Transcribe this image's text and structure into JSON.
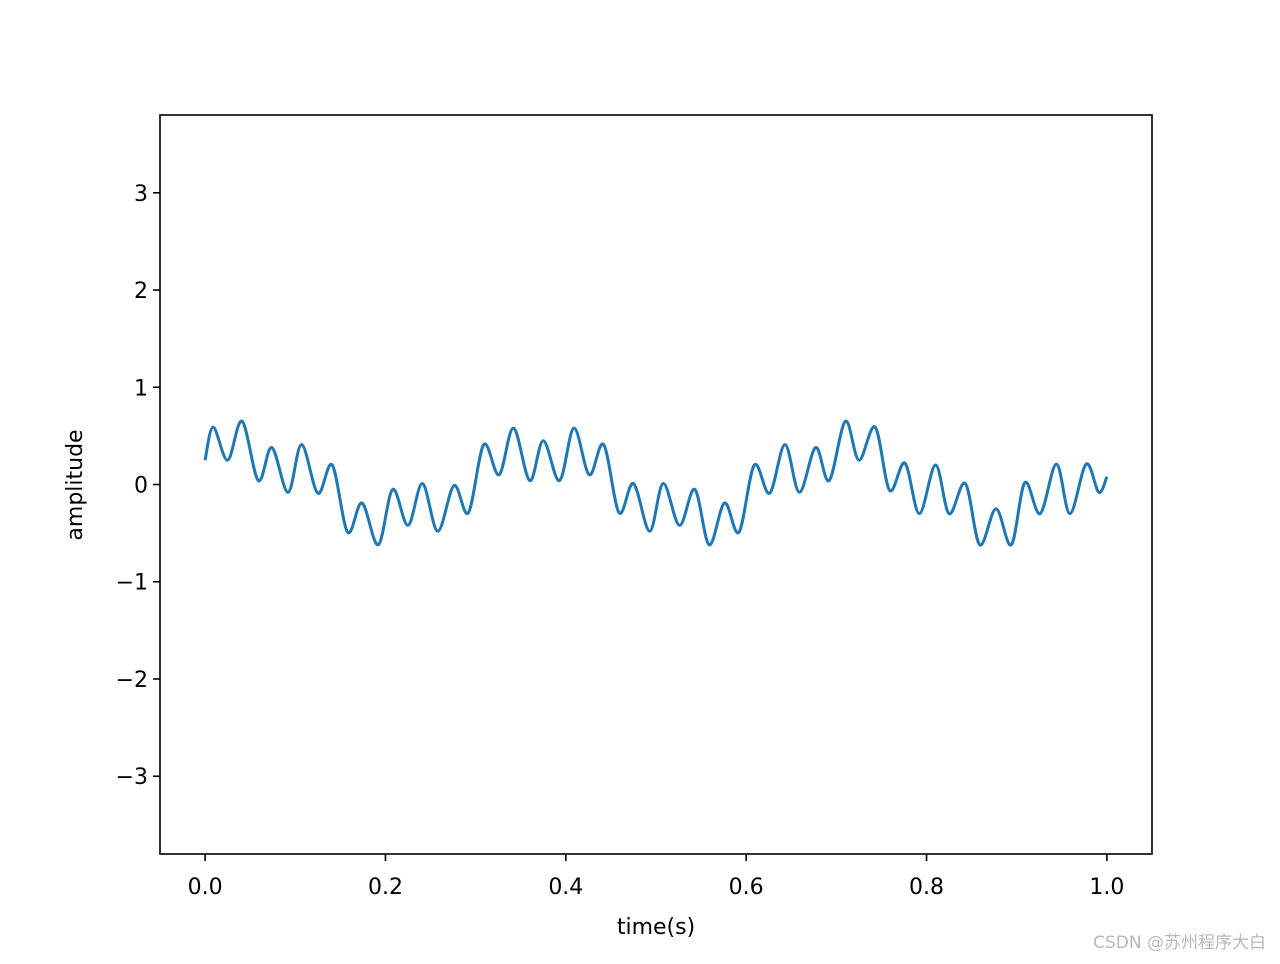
{
  "chart_data": {
    "type": "line",
    "xlabel": "time(s)",
    "ylabel": "amplitude",
    "x": [
      0,
      0.009,
      0.025,
      0.041,
      0.059,
      0.074,
      0.092,
      0.107,
      0.125,
      0.141,
      0.158,
      0.174,
      0.192,
      0.208,
      0.225,
      0.241,
      0.258,
      0.276,
      0.292,
      0.309,
      0.326,
      0.342,
      0.36,
      0.375,
      0.393,
      0.409,
      0.426,
      0.442,
      0.459,
      0.475,
      0.493,
      0.508,
      0.526,
      0.543,
      0.559,
      0.576,
      0.592,
      0.609,
      0.626,
      0.643,
      0.659,
      0.677,
      0.692,
      0.71,
      0.725,
      0.743,
      0.759,
      0.776,
      0.792,
      0.81,
      0.825,
      0.843,
      0.859,
      0.877,
      0.894,
      0.909,
      0.926,
      0.944,
      0.959,
      0.977,
      0.991,
      1.0
    ],
    "series": [
      {
        "color": "#1f77b4",
        "values": [
          0.25,
          0.59,
          0.25,
          0.65,
          0.04,
          0.38,
          -0.08,
          0.41,
          -0.09,
          0.2,
          -0.49,
          -0.19,
          -0.62,
          -0.05,
          -0.42,
          0.01,
          -0.48,
          -0.01,
          -0.29,
          0.41,
          0.1,
          0.58,
          0.04,
          0.45,
          0.04,
          0.58,
          0.1,
          0.41,
          -0.29,
          0.01,
          -0.48,
          0.01,
          -0.42,
          -0.05,
          -0.62,
          -0.19,
          -0.49,
          0.2,
          -0.09,
          0.41,
          -0.08,
          0.38,
          0.04,
          0.65,
          0.25,
          0.59,
          -0.06,
          0.22,
          -0.3,
          0.2,
          -0.3,
          0.01,
          -0.62,
          -0.25,
          -0.62,
          0.02,
          -0.3,
          0.21,
          -0.3,
          0.21,
          -0.08,
          0.08
        ]
      }
    ],
    "xlim": [
      -0.05,
      1.05
    ],
    "ylim": [
      -3.8,
      3.8
    ],
    "xticks": [
      {
        "value": 0,
        "label": "0.0"
      },
      0.2,
      0.4,
      0.6,
      0.8,
      {
        "value": 1,
        "label": "1.0"
      }
    ],
    "yticks": [
      {
        "value": -3,
        "label": "−3"
      },
      {
        "value": -2,
        "label": "−2"
      },
      {
        "value": -1,
        "label": "−1"
      },
      0,
      1,
      2,
      3
    ],
    "grid": false
  },
  "watermark": "CSDN @苏州程序大白"
}
